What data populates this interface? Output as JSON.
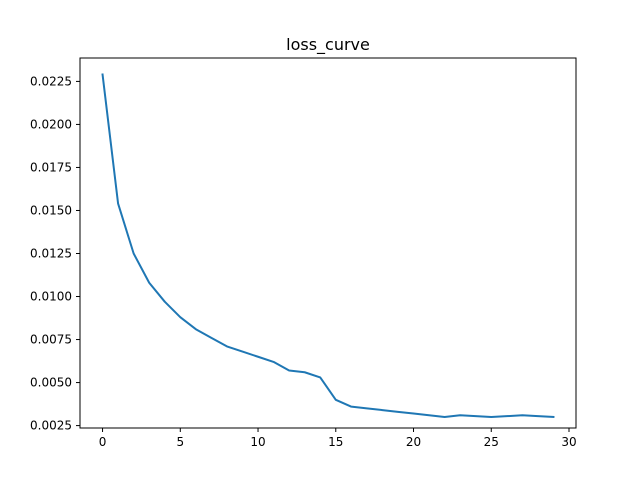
{
  "chart_data": {
    "type": "line",
    "title": "loss_curve",
    "xlabel": "",
    "ylabel": "",
    "grid": false,
    "xlim": [
      -1.45,
      30.45
    ],
    "ylim": [
      0.00236,
      0.02386
    ],
    "xticks": [
      0,
      5,
      10,
      15,
      20,
      25,
      30
    ],
    "xtick_labels": [
      "0",
      "5",
      "10",
      "15",
      "20",
      "25",
      "30"
    ],
    "yticks": [
      0.0025,
      0.005,
      0.0075,
      0.01,
      0.0125,
      0.015,
      0.0175,
      0.02,
      0.0225
    ],
    "ytick_labels": [
      "0.0025",
      "0.0050",
      "0.0075",
      "0.0100",
      "0.0125",
      "0.0150",
      "0.0175",
      "0.0200",
      "0.0225"
    ],
    "series": [
      {
        "name": "loss",
        "color": "#1f77b4",
        "x": [
          0,
          1,
          2,
          3,
          4,
          5,
          6,
          7,
          8,
          9,
          10,
          11,
          12,
          13,
          14,
          15,
          16,
          17,
          18,
          19,
          20,
          21,
          22,
          23,
          24,
          25,
          26,
          27,
          28,
          29
        ],
        "values": [
          0.0229,
          0.0154,
          0.0125,
          0.0108,
          0.0097,
          0.0088,
          0.0081,
          0.0076,
          0.0071,
          0.0068,
          0.0065,
          0.0062,
          0.0057,
          0.0056,
          0.0053,
          0.004,
          0.0036,
          0.0035,
          0.0034,
          0.0033,
          0.0032,
          0.0031,
          0.003,
          0.0031,
          0.00305,
          0.003,
          0.00305,
          0.0031,
          0.00305,
          0.003
        ]
      }
    ]
  }
}
